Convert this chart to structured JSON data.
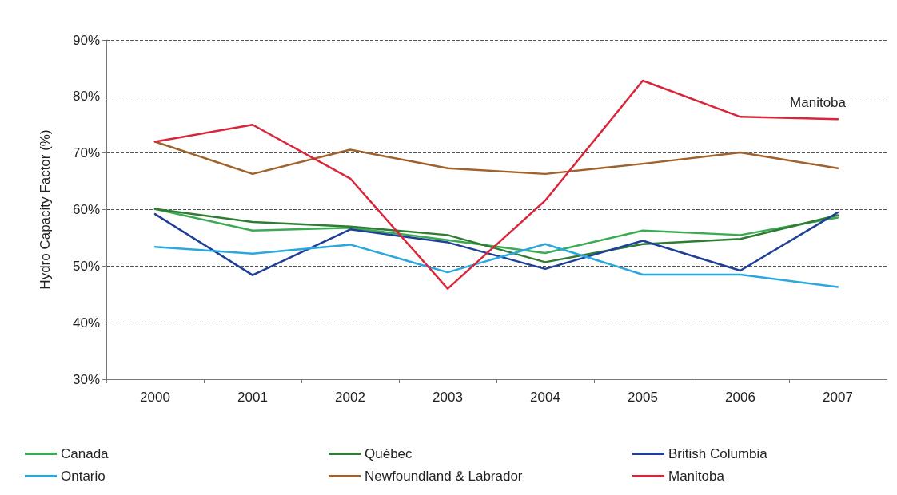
{
  "chart_data": {
    "type": "line",
    "ylabel": "Hydro Capacity Factor (%)",
    "categories": [
      "2000",
      "2001",
      "2002",
      "2003",
      "2004",
      "2005",
      "2006",
      "2007"
    ],
    "series": [
      {
        "name": "Canada",
        "color": "#3aab52",
        "values": [
          60.1,
          56.3,
          56.8,
          54.6,
          52.3,
          56.3,
          55.5,
          58.6
        ]
      },
      {
        "name": "Québec",
        "color": "#2e7d32",
        "values": [
          60.1,
          57.8,
          57,
          55.5,
          50.7,
          53.9,
          54.8,
          59
        ]
      },
      {
        "name": "British Columbia",
        "color": "#1f3f99",
        "values": [
          59.2,
          48.4,
          56.5,
          54.2,
          49.5,
          54.5,
          49.2,
          59.5
        ]
      },
      {
        "name": "Ontario",
        "color": "#29a8e0",
        "values": [
          53.4,
          52.2,
          53.8,
          48.9,
          53.9,
          48.5,
          48.5,
          46.3
        ]
      },
      {
        "name": "Newfoundland & Labrador",
        "color": "#a0612b",
        "values": [
          72,
          66.3,
          70.6,
          67.3,
          66.3,
          68.1,
          70.1,
          67.3
        ]
      },
      {
        "name": "Manitoba",
        "color": "#d9263a",
        "values": [
          72,
          75,
          65.5,
          46,
          61.6,
          82.8,
          76.4,
          76
        ]
      }
    ],
    "ylim": [
      30,
      90
    ],
    "yticks": [
      {
        "value": 30,
        "label": "30%"
      },
      {
        "value": 40,
        "label": "40%"
      },
      {
        "value": 50,
        "label": "50%"
      },
      {
        "value": 60,
        "label": "60%"
      },
      {
        "value": 70,
        "label": "70%"
      },
      {
        "value": 80,
        "label": "80%"
      },
      {
        "value": 90,
        "label": "90%"
      }
    ],
    "grid": "y",
    "legend": "bottom",
    "marker": "none",
    "line_style": "solid",
    "annotations": [
      "Manitoba"
    ]
  }
}
